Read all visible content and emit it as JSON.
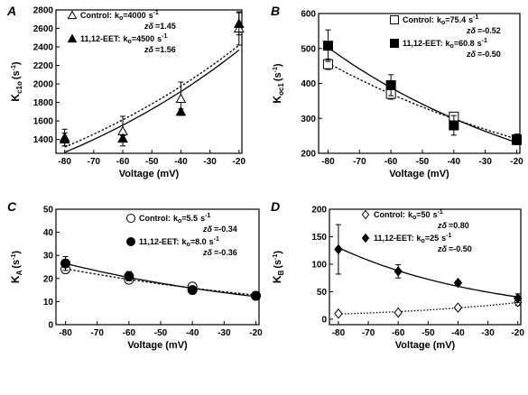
{
  "chart_data": [
    {
      "type": "scatter",
      "panel": "A",
      "xlabel": "Voltage (mV)",
      "ylabel": "K",
      "ylabel_sub": "c1o",
      "ylabel_unit": "(s",
      "ylabel_exp": "-1",
      "ylabel_close": ")",
      "xlim": [
        -83,
        -19
      ],
      "ylim": [
        1250,
        2800
      ],
      "xticks": [
        -80,
        -70,
        -60,
        -50,
        -40,
        -30,
        -20
      ],
      "yticks": [
        1400,
        1600,
        1800,
        2000,
        2200,
        2400,
        2600,
        2800
      ],
      "legend_loc": "top-left",
      "series": [
        {
          "name": "Control:",
          "param": "k",
          "param_sub": "o",
          "param_value": "=4000",
          "param_unit": "s",
          "param_exp": "-1",
          "zd_label": "zδ",
          "zd_value": "=1.45",
          "marker": "open-triangle",
          "line": "dashed",
          "k0": 4000,
          "zd": 1.45,
          "x": [
            -80,
            -60,
            -40,
            -20
          ],
          "y": [
            1420,
            1490,
            1840,
            2600
          ],
          "err": [
            90,
            160,
            180,
            180
          ]
        },
        {
          "name": "11,12-EET:",
          "param": "k",
          "param_sub": "o",
          "param_value": "=4500",
          "param_unit": "s",
          "param_exp": "-1",
          "zd_label": "zδ",
          "zd_value": "=1.56",
          "marker": "filled-triangle",
          "line": "solid",
          "k0": 4500,
          "zd": 1.56,
          "x": [
            -80,
            -60,
            -40,
            -20
          ],
          "y": [
            1400,
            1410,
            1700,
            2650
          ],
          "err": [
            70,
            30,
            30,
            120
          ]
        }
      ]
    },
    {
      "type": "scatter",
      "panel": "B",
      "xlabel": "Voltage (mV)",
      "ylabel": "K",
      "ylabel_sub": "oc1",
      "ylabel_unit": "(s",
      "ylabel_exp": "-1",
      "ylabel_close": ")",
      "xlim": [
        -83,
        -19
      ],
      "ylim": [
        200,
        600
      ],
      "xticks": [
        -80,
        -70,
        -60,
        -50,
        -40,
        -30,
        -20
      ],
      "yticks": [
        200,
        300,
        400,
        500,
        600
      ],
      "legend_loc": "top-right",
      "series": [
        {
          "name": "Control:",
          "param": "k",
          "param_sub": "o",
          "param_value": "=75.4",
          "param_unit": "s",
          "param_exp": "-1",
          "zd_label": "zδ",
          "zd_value": "=-0.52",
          "marker": "open-square",
          "line": "dashed",
          "k0": 75.4,
          "zd": -0.52,
          "x": [
            -80,
            -60,
            -40,
            -20
          ],
          "y": [
            455,
            370,
            305,
            238
          ],
          "err": [
            15,
            15,
            10,
            10
          ]
        },
        {
          "name": "11,12-EET:",
          "param": "k",
          "param_sub": "o",
          "param_value": "=60.8",
          "param_unit": "s",
          "param_exp": "-1",
          "zd_label": "zδ",
          "zd_value": "=-0.50",
          "marker": "filled-square",
          "line": "solid",
          "k0": 60.8,
          "zd": -0.5,
          "x": [
            -80,
            -60,
            -40,
            -20
          ],
          "y": [
            508,
            395,
            280,
            240
          ],
          "err": [
            45,
            30,
            28,
            15
          ]
        }
      ]
    },
    {
      "type": "scatter",
      "panel": "C",
      "xlabel": "Voltage (mV)",
      "ylabel": "K",
      "ylabel_sub": "A",
      "ylabel_unit": "(s",
      "ylabel_exp": "-1",
      "ylabel_close": ")",
      "xlim": [
        -83,
        -19
      ],
      "ylim": [
        0,
        50
      ],
      "xticks": [
        -80,
        -70,
        -60,
        -50,
        -40,
        -30,
        -20
      ],
      "yticks": [
        0,
        10,
        20,
        30,
        40,
        50
      ],
      "legend_loc": "top-right",
      "series": [
        {
          "name": "Control:",
          "param": "k",
          "param_sub": "o",
          "param_value": "=5.5",
          "param_unit": "s",
          "param_exp": "-1",
          "zd_label": "zδ",
          "zd_value": "=-0.34",
          "marker": "open-circle",
          "line": "dashed",
          "k0": 5.5,
          "zd": -0.34,
          "x": [
            -80,
            -60,
            -40,
            -20
          ],
          "y": [
            24,
            19.5,
            16.5,
            12.5
          ],
          "err": [
            1.5,
            1.5,
            1.0,
            0.8
          ]
        },
        {
          "name": "11,12-EET:",
          "param": "k",
          "param_sub": "o",
          "param_value": "=8.0",
          "param_unit": "s",
          "param_exp": "-1",
          "zd_label": "zδ",
          "zd_value": "=-0.36",
          "marker": "filled-circle",
          "line": "solid",
          "k0": 8.0,
          "zd": -0.36,
          "x": [
            -80,
            -60,
            -40,
            -20
          ],
          "y": [
            26.5,
            21,
            15,
            12.5
          ],
          "err": [
            3,
            2,
            1.5,
            1
          ]
        }
      ]
    },
    {
      "type": "scatter",
      "panel": "D",
      "xlabel": "Voltage (mV)",
      "ylabel": "K",
      "ylabel_sub": "B",
      "ylabel_unit": "(s",
      "ylabel_exp": "-1",
      "ylabel_close": ")",
      "xlim": [
        -83,
        -19
      ],
      "ylim": [
        -10,
        200
      ],
      "xticks": [
        -80,
        -70,
        -60,
        -50,
        -40,
        -30,
        -20
      ],
      "yticks": [
        0,
        50,
        100,
        150,
        200
      ],
      "legend_loc": "top-right",
      "series": [
        {
          "name": "Control:",
          "param": "k",
          "param_sub": "o",
          "param_value": "=50",
          "param_unit": "s",
          "param_exp": "-1",
          "zd_label": "zδ",
          "zd_value": "=0.80",
          "marker": "open-diamond",
          "line": "dotted",
          "k0": 50,
          "zd": 0.8,
          "x": [
            -80,
            -60,
            -40,
            -20
          ],
          "y": [
            10,
            12,
            21,
            31
          ],
          "err": [
            2,
            2,
            4,
            6
          ]
        },
        {
          "name": "11,12-EET:",
          "param": "k",
          "param_sub": "o",
          "param_value": "=25",
          "param_unit": "s",
          "param_exp": "-1",
          "zd_label": "zδ",
          "zd_value": "=-0.50",
          "marker": "filled-diamond",
          "line": "solid",
          "k0": 25,
          "zd": -0.5,
          "x": [
            -80,
            -60,
            -40,
            -20
          ],
          "y": [
            127,
            87,
            66,
            38
          ],
          "err": [
            45,
            12,
            4,
            8
          ]
        }
      ]
    }
  ]
}
